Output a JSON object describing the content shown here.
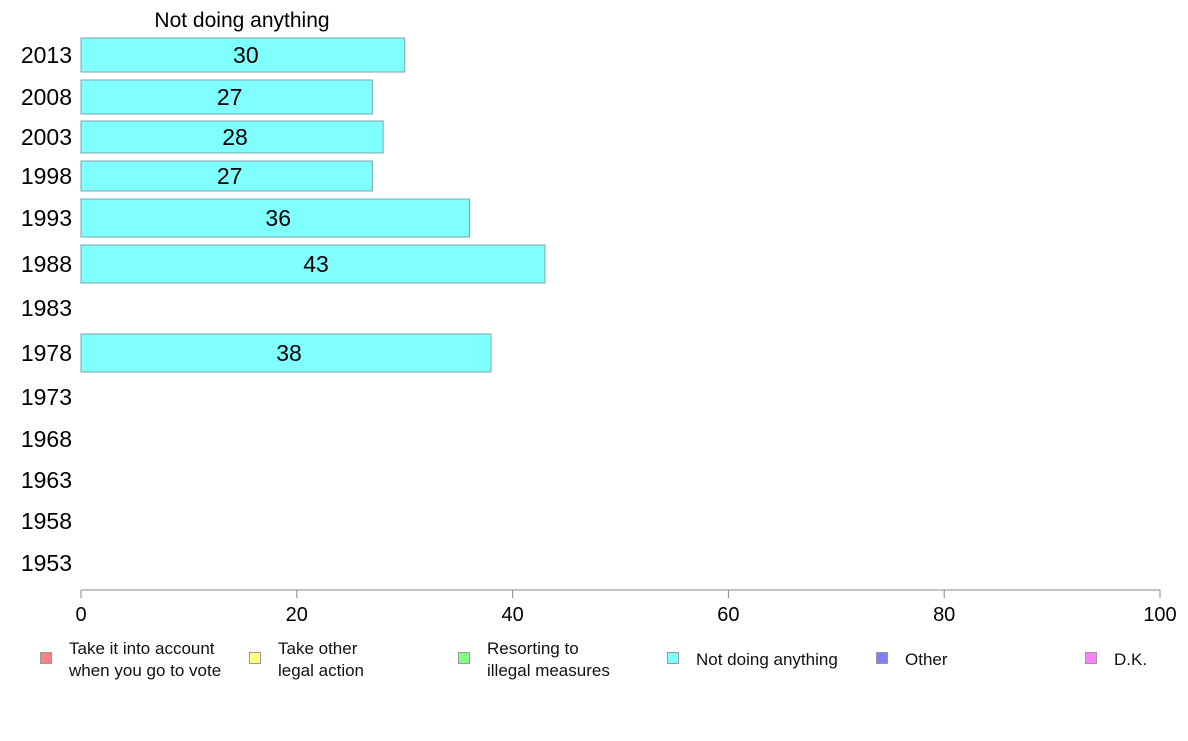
{
  "chart_data": {
    "type": "bar",
    "orientation": "horizontal",
    "title": "Not doing anything",
    "categories": [
      "2013",
      "2008",
      "2003",
      "1998",
      "1993",
      "1988",
      "1983",
      "1978",
      "1973",
      "1968",
      "1963",
      "1958",
      "1953"
    ],
    "series": [
      {
        "name": "Not doing anything",
        "color": "#80ffff",
        "values": [
          30,
          27,
          28,
          27,
          36,
          43,
          null,
          38,
          null,
          null,
          null,
          null,
          null
        ]
      }
    ],
    "xlim": [
      0,
      100
    ],
    "xticks": [
      0,
      20,
      40,
      60,
      80,
      100
    ],
    "grid": false,
    "legend": {
      "placement": "bottom",
      "entries": [
        {
          "label": "Take it into account\nwhen you go to vote",
          "color": "#ff8080"
        },
        {
          "label": "Take other\nlegal action",
          "color": "#ffff80"
        },
        {
          "label": "Resorting to\nillegal measures",
          "color": "#80ff80"
        },
        {
          "label": "Not doing anything",
          "color": "#80ffff"
        },
        {
          "label": "Other",
          "color": "#8080ff"
        },
        {
          "label": "D.K.",
          "color": "#ff80ff"
        }
      ]
    }
  }
}
